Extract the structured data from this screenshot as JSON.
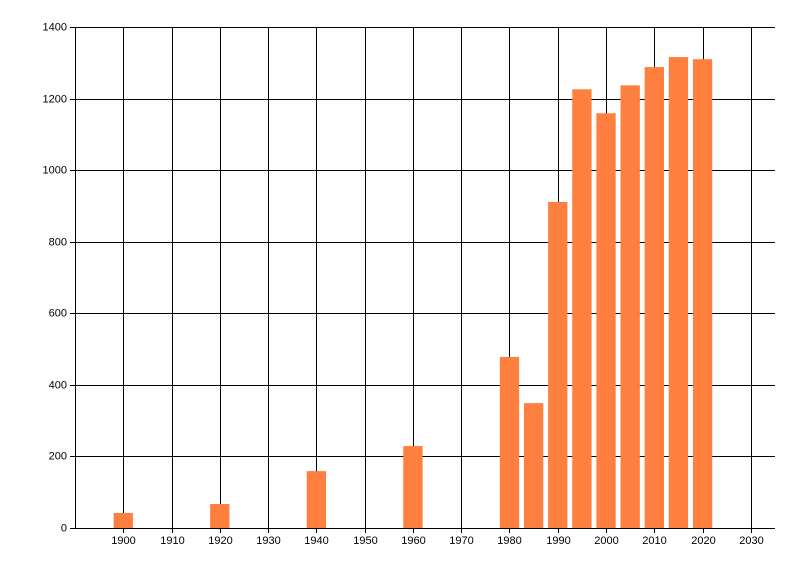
{
  "chart_data": {
    "type": "bar",
    "x": [
      1900,
      1920,
      1940,
      1960,
      1980,
      1985,
      1990,
      1995,
      2000,
      2005,
      2010,
      2015,
      2020
    ],
    "values": [
      42,
      67,
      159,
      229,
      478,
      349,
      911,
      1226,
      1159,
      1237,
      1288,
      1316,
      1310
    ],
    "color": "#ff7f3f",
    "xlim": [
      1890,
      2035
    ],
    "xticks": [
      1900,
      1910,
      1920,
      1930,
      1940,
      1950,
      1960,
      1970,
      1980,
      1990,
      2000,
      2010,
      2020,
      2030
    ],
    "ylim": [
      0,
      1400
    ],
    "yticks": [
      0,
      200,
      400,
      600,
      800,
      1000,
      1200,
      1400
    ],
    "grid": true
  }
}
